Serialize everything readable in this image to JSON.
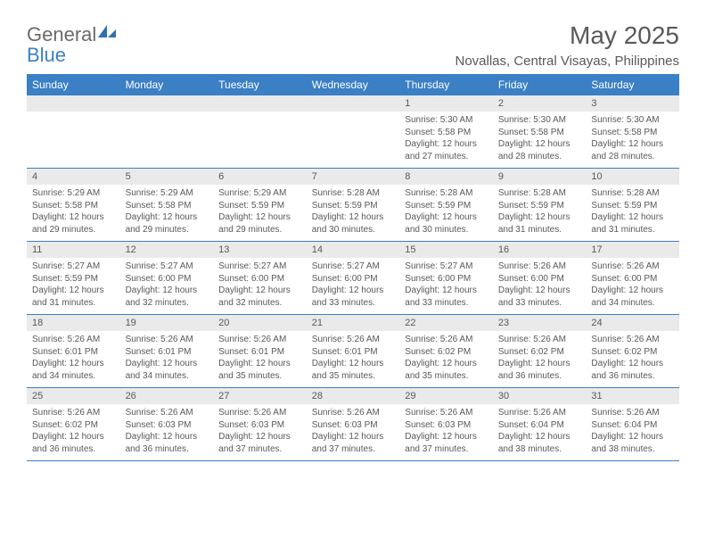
{
  "logo": {
    "brand_a": "General",
    "brand_b": "Blue"
  },
  "title": "May 2025",
  "location": "Novallas, Central Visayas, Philippines",
  "colors": {
    "header_bg": "#3b7fc4",
    "header_text": "#ffffff",
    "daynum_bg": "#eaeaea",
    "text": "#595959",
    "body_bg": "#ffffff",
    "row_divider": "#3b7fc4"
  },
  "weekday_labels": [
    "Sunday",
    "Monday",
    "Tuesday",
    "Wednesday",
    "Thursday",
    "Friday",
    "Saturday"
  ],
  "weeks": [
    [
      {
        "num": "",
        "lines": []
      },
      {
        "num": "",
        "lines": []
      },
      {
        "num": "",
        "lines": []
      },
      {
        "num": "",
        "lines": []
      },
      {
        "num": "1",
        "lines": [
          "Sunrise: 5:30 AM",
          "Sunset: 5:58 PM",
          "Daylight: 12 hours",
          "and 27 minutes."
        ]
      },
      {
        "num": "2",
        "lines": [
          "Sunrise: 5:30 AM",
          "Sunset: 5:58 PM",
          "Daylight: 12 hours",
          "and 28 minutes."
        ]
      },
      {
        "num": "3",
        "lines": [
          "Sunrise: 5:30 AM",
          "Sunset: 5:58 PM",
          "Daylight: 12 hours",
          "and 28 minutes."
        ]
      }
    ],
    [
      {
        "num": "4",
        "lines": [
          "Sunrise: 5:29 AM",
          "Sunset: 5:58 PM",
          "Daylight: 12 hours",
          "and 29 minutes."
        ]
      },
      {
        "num": "5",
        "lines": [
          "Sunrise: 5:29 AM",
          "Sunset: 5:58 PM",
          "Daylight: 12 hours",
          "and 29 minutes."
        ]
      },
      {
        "num": "6",
        "lines": [
          "Sunrise: 5:29 AM",
          "Sunset: 5:59 PM",
          "Daylight: 12 hours",
          "and 29 minutes."
        ]
      },
      {
        "num": "7",
        "lines": [
          "Sunrise: 5:28 AM",
          "Sunset: 5:59 PM",
          "Daylight: 12 hours",
          "and 30 minutes."
        ]
      },
      {
        "num": "8",
        "lines": [
          "Sunrise: 5:28 AM",
          "Sunset: 5:59 PM",
          "Daylight: 12 hours",
          "and 30 minutes."
        ]
      },
      {
        "num": "9",
        "lines": [
          "Sunrise: 5:28 AM",
          "Sunset: 5:59 PM",
          "Daylight: 12 hours",
          "and 31 minutes."
        ]
      },
      {
        "num": "10",
        "lines": [
          "Sunrise: 5:28 AM",
          "Sunset: 5:59 PM",
          "Daylight: 12 hours",
          "and 31 minutes."
        ]
      }
    ],
    [
      {
        "num": "11",
        "lines": [
          "Sunrise: 5:27 AM",
          "Sunset: 5:59 PM",
          "Daylight: 12 hours",
          "and 31 minutes."
        ]
      },
      {
        "num": "12",
        "lines": [
          "Sunrise: 5:27 AM",
          "Sunset: 6:00 PM",
          "Daylight: 12 hours",
          "and 32 minutes."
        ]
      },
      {
        "num": "13",
        "lines": [
          "Sunrise: 5:27 AM",
          "Sunset: 6:00 PM",
          "Daylight: 12 hours",
          "and 32 minutes."
        ]
      },
      {
        "num": "14",
        "lines": [
          "Sunrise: 5:27 AM",
          "Sunset: 6:00 PM",
          "Daylight: 12 hours",
          "and 33 minutes."
        ]
      },
      {
        "num": "15",
        "lines": [
          "Sunrise: 5:27 AM",
          "Sunset: 6:00 PM",
          "Daylight: 12 hours",
          "and 33 minutes."
        ]
      },
      {
        "num": "16",
        "lines": [
          "Sunrise: 5:26 AM",
          "Sunset: 6:00 PM",
          "Daylight: 12 hours",
          "and 33 minutes."
        ]
      },
      {
        "num": "17",
        "lines": [
          "Sunrise: 5:26 AM",
          "Sunset: 6:00 PM",
          "Daylight: 12 hours",
          "and 34 minutes."
        ]
      }
    ],
    [
      {
        "num": "18",
        "lines": [
          "Sunrise: 5:26 AM",
          "Sunset: 6:01 PM",
          "Daylight: 12 hours",
          "and 34 minutes."
        ]
      },
      {
        "num": "19",
        "lines": [
          "Sunrise: 5:26 AM",
          "Sunset: 6:01 PM",
          "Daylight: 12 hours",
          "and 34 minutes."
        ]
      },
      {
        "num": "20",
        "lines": [
          "Sunrise: 5:26 AM",
          "Sunset: 6:01 PM",
          "Daylight: 12 hours",
          "and 35 minutes."
        ]
      },
      {
        "num": "21",
        "lines": [
          "Sunrise: 5:26 AM",
          "Sunset: 6:01 PM",
          "Daylight: 12 hours",
          "and 35 minutes."
        ]
      },
      {
        "num": "22",
        "lines": [
          "Sunrise: 5:26 AM",
          "Sunset: 6:02 PM",
          "Daylight: 12 hours",
          "and 35 minutes."
        ]
      },
      {
        "num": "23",
        "lines": [
          "Sunrise: 5:26 AM",
          "Sunset: 6:02 PM",
          "Daylight: 12 hours",
          "and 36 minutes."
        ]
      },
      {
        "num": "24",
        "lines": [
          "Sunrise: 5:26 AM",
          "Sunset: 6:02 PM",
          "Daylight: 12 hours",
          "and 36 minutes."
        ]
      }
    ],
    [
      {
        "num": "25",
        "lines": [
          "Sunrise: 5:26 AM",
          "Sunset: 6:02 PM",
          "Daylight: 12 hours",
          "and 36 minutes."
        ]
      },
      {
        "num": "26",
        "lines": [
          "Sunrise: 5:26 AM",
          "Sunset: 6:03 PM",
          "Daylight: 12 hours",
          "and 36 minutes."
        ]
      },
      {
        "num": "27",
        "lines": [
          "Sunrise: 5:26 AM",
          "Sunset: 6:03 PM",
          "Daylight: 12 hours",
          "and 37 minutes."
        ]
      },
      {
        "num": "28",
        "lines": [
          "Sunrise: 5:26 AM",
          "Sunset: 6:03 PM",
          "Daylight: 12 hours",
          "and 37 minutes."
        ]
      },
      {
        "num": "29",
        "lines": [
          "Sunrise: 5:26 AM",
          "Sunset: 6:03 PM",
          "Daylight: 12 hours",
          "and 37 minutes."
        ]
      },
      {
        "num": "30",
        "lines": [
          "Sunrise: 5:26 AM",
          "Sunset: 6:04 PM",
          "Daylight: 12 hours",
          "and 38 minutes."
        ]
      },
      {
        "num": "31",
        "lines": [
          "Sunrise: 5:26 AM",
          "Sunset: 6:04 PM",
          "Daylight: 12 hours",
          "and 38 minutes."
        ]
      }
    ]
  ]
}
